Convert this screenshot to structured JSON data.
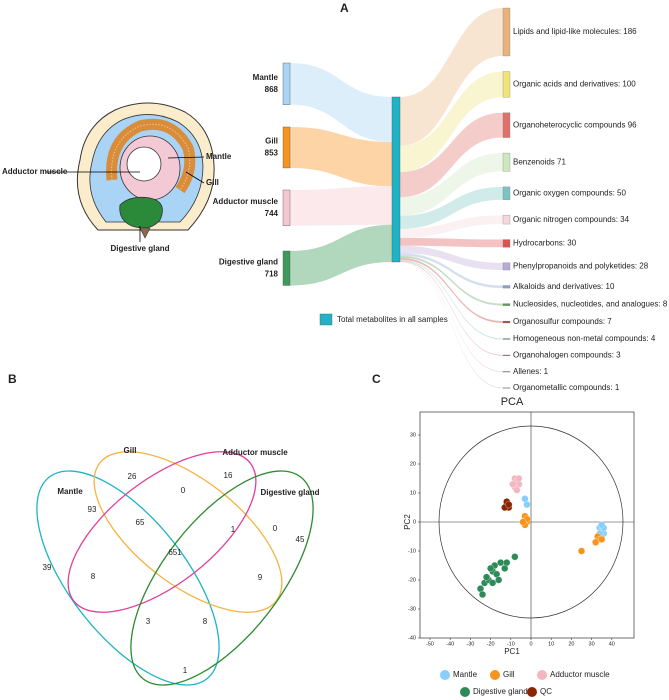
{
  "chart_data": [
    {
      "type": "sankey",
      "panel": "A",
      "anatomy_labels": [
        "Mantle",
        "Gill",
        "Adductor muscle",
        "Digestive gland"
      ],
      "sources": [
        {
          "name": "Mantle",
          "value": 868,
          "color": "#a9d4f5"
        },
        {
          "name": "Gill",
          "value": 853,
          "color": "#f7941d"
        },
        {
          "name": "Adductor muscle",
          "value": 744,
          "color": "#f6c7cf"
        },
        {
          "name": "Digestive gland",
          "value": 718,
          "color": "#3c9a5a"
        }
      ],
      "center_label": "Total metabolites in all samples",
      "center_color": "#1fb3c8",
      "target_labels": [
        "Lipids and lipid-like molecules: 186",
        "Organic acids and derivatives: 100",
        "Organoheterocyclic compounds 96",
        "Benzenoids 71",
        "Organic oxygen compounds: 50",
        "Organic nitrogen compounds: 34",
        "Hydrocarbons: 30",
        "Phenylpropanoids and polyketides: 28",
        "Alkaloids and derivatives: 10",
        "Nucleosides, nucleotides, and analogues: 8",
        "Organosulfur compounds: 7",
        "Homogeneous non-metal compounds: 4",
        "Organohalogen compounds: 3",
        "Allenes: 1",
        "Organometallic compounds: 1"
      ],
      "target_values": [
        186,
        100,
        96,
        71,
        50,
        34,
        30,
        28,
        10,
        8,
        7,
        4,
        3,
        1,
        1
      ],
      "target_colors": [
        "#e8b27a",
        "#f2e27a",
        "#e0706a",
        "#cfe6c0",
        "#7cc4c4",
        "#f4d8dc",
        "#d9534f",
        "#b9a9d9",
        "#8aa0d8",
        "#5a9a5a",
        "#c0392b",
        "#7fb8a0",
        "#c05050",
        "#d090b0",
        "#a0a0c0"
      ]
    },
    {
      "type": "venn",
      "panel": "B",
      "sets": [
        "Mantle",
        "Gill",
        "Adductor muscle",
        "Digestive gland"
      ],
      "colors": [
        "#1fb3c8",
        "#f5b342",
        "#e0409a",
        "#2e8b2e"
      ],
      "values": [
        26,
        0,
        16,
        93,
        65,
        1,
        0,
        39,
        651,
        45,
        8,
        9,
        3,
        8,
        1
      ]
    },
    {
      "type": "scatter",
      "panel": "C",
      "title": "PCA",
      "x_label": "PC1",
      "y_label": "PC2",
      "xlim": [
        -50,
        50
      ],
      "ylim": [
        -40,
        40
      ],
      "xticks": [
        -50,
        -40,
        -30,
        -20,
        -10,
        0,
        10,
        20,
        30,
        40
      ],
      "yticks": [
        -40,
        -30,
        -20,
        -10,
        0,
        10,
        20,
        30
      ],
      "series": [
        {
          "name": "Mantle",
          "color": "#87cefa",
          "x": [
            34,
            35,
            36,
            35,
            34,
            36,
            35,
            -3,
            -2
          ],
          "values": [
            -2,
            -3,
            -4,
            -5,
            -4,
            -2,
            -1,
            8,
            6
          ]
        },
        {
          "name": "Gill",
          "color": "#f7941d",
          "x": [
            -3,
            -2,
            -3,
            -2,
            -4,
            33,
            34,
            32,
            25,
            35
          ],
          "values": [
            2,
            0,
            -1,
            1,
            0,
            -5,
            -6,
            -7,
            -10,
            -6
          ]
        },
        {
          "name": "Adductor muscle",
          "color": "#f4b6c2",
          "x": [
            -8,
            -7,
            -6,
            -8,
            -7,
            -9,
            -6
          ],
          "values": [
            15,
            14,
            13,
            12,
            11,
            13,
            15
          ]
        },
        {
          "name": "Digestive gland",
          "color": "#2e8b57",
          "x": [
            -25,
            -23,
            -21,
            -19,
            -18,
            -20,
            -17,
            -15,
            -22,
            -13,
            -16,
            -8,
            -19,
            -24,
            -12
          ],
          "values": [
            -23,
            -21,
            -20,
            -17,
            -15,
            -16,
            -18,
            -14,
            -19,
            -16,
            -20,
            -12,
            -21,
            -25,
            -14
          ]
        },
        {
          "name": "QC",
          "color": "#8b2500",
          "x": [
            -12,
            -11,
            -13,
            -12,
            -11
          ],
          "values": [
            6,
            5,
            5,
            7,
            6
          ]
        }
      ]
    }
  ]
}
